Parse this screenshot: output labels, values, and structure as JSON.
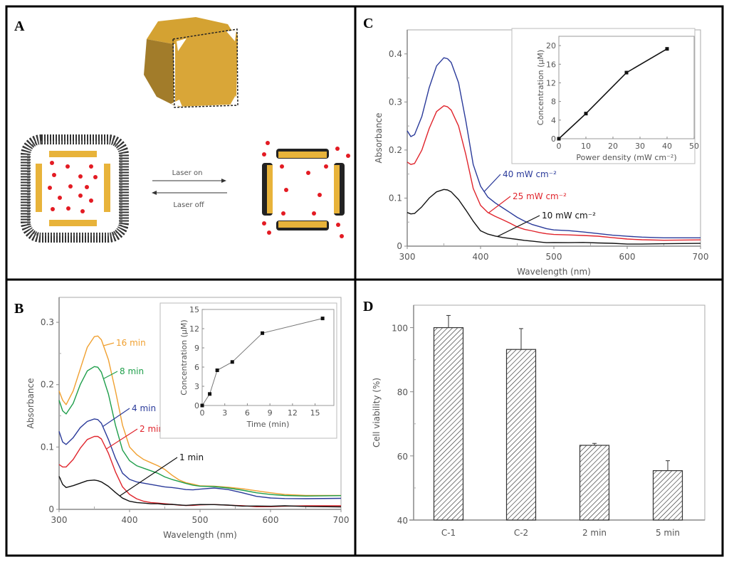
{
  "figure": {
    "panels": [
      "A",
      "B",
      "C",
      "D"
    ]
  },
  "panel_a": {
    "letter": "A",
    "arrow_forward_label": "Laser on",
    "arrow_back_label": "Laser off",
    "colors": {
      "gold": "#E8B33A",
      "gold_dark": "#A27C2A",
      "gold_mid": "#C9962E",
      "drug": "#E31B23",
      "polymer": "#222222"
    }
  },
  "chart_data": [
    {
      "id": "B",
      "type": "line",
      "title": "",
      "letter": "B",
      "xlabel": "Wavelength (nm)",
      "ylabel": "Absorbance",
      "xlim": [
        300,
        700
      ],
      "ylim": [
        0,
        0.34
      ],
      "xticks": [
        300,
        400,
        500,
        600,
        700
      ],
      "yticks": [
        0,
        0.1,
        0.2,
        0.3
      ],
      "ytick_labels": [
        "0",
        "0.1",
        "0.2",
        "0.3"
      ],
      "x": [
        300,
        305,
        310,
        320,
        330,
        340,
        350,
        355,
        360,
        370,
        380,
        390,
        400,
        410,
        420,
        430,
        440,
        450,
        460,
        470,
        480,
        490,
        500,
        520,
        540,
        560,
        580,
        600,
        620,
        650,
        700
      ],
      "series": [
        {
          "name": "16 min",
          "color": "#F0A030",
          "values": [
            0.19,
            0.175,
            0.168,
            0.19,
            0.225,
            0.26,
            0.277,
            0.278,
            0.272,
            0.24,
            0.19,
            0.135,
            0.1,
            0.088,
            0.08,
            0.075,
            0.07,
            0.064,
            0.055,
            0.047,
            0.042,
            0.04,
            0.038,
            0.038,
            0.036,
            0.033,
            0.029,
            0.026,
            0.024,
            0.023,
            0.023
          ]
        },
        {
          "name": "8 min",
          "color": "#1E9E4A",
          "values": [
            0.175,
            0.158,
            0.153,
            0.17,
            0.2,
            0.222,
            0.229,
            0.228,
            0.22,
            0.185,
            0.135,
            0.095,
            0.078,
            0.07,
            0.066,
            0.062,
            0.058,
            0.052,
            0.048,
            0.044,
            0.041,
            0.039,
            0.038,
            0.037,
            0.034,
            0.03,
            0.026,
            0.024,
            0.023,
            0.022,
            0.022
          ]
        },
        {
          "name": "4 min",
          "color": "#2A3A9A",
          "values": [
            0.125,
            0.108,
            0.104,
            0.115,
            0.131,
            0.141,
            0.145,
            0.144,
            0.138,
            0.112,
            0.082,
            0.058,
            0.048,
            0.044,
            0.042,
            0.04,
            0.038,
            0.036,
            0.035,
            0.033,
            0.032,
            0.032,
            0.033,
            0.034,
            0.031,
            0.026,
            0.021,
            0.019,
            0.018,
            0.017,
            0.017
          ]
        },
        {
          "name": "2 min",
          "color": "#E0242C",
          "values": [
            0.072,
            0.068,
            0.068,
            0.08,
            0.098,
            0.112,
            0.117,
            0.117,
            0.113,
            0.09,
            0.06,
            0.036,
            0.024,
            0.017,
            0.013,
            0.011,
            0.01,
            0.009,
            0.008,
            0.007,
            0.007,
            0.007,
            0.007,
            0.007,
            0.006,
            0.006,
            0.005,
            0.005,
            0.005,
            0.005,
            0.005
          ]
        },
        {
          "name": "1 min",
          "color": "#111111",
          "values": [
            0.053,
            0.04,
            0.035,
            0.038,
            0.042,
            0.046,
            0.047,
            0.046,
            0.044,
            0.037,
            0.027,
            0.018,
            0.013,
            0.011,
            0.01,
            0.009,
            0.009,
            0.008,
            0.008,
            0.008,
            0.007,
            0.007,
            0.007,
            0.007,
            0.007,
            0.006,
            0.006,
            0.005,
            0.005,
            0.004,
            0.004
          ]
        }
      ],
      "annotations": [
        {
          "text": "16 min",
          "series": "16 min",
          "from_x": 363,
          "to_label": true
        },
        {
          "text": "8 min",
          "series": "8 min",
          "from_x": 363
        },
        {
          "text": "4 min",
          "series": "4 min",
          "from_x": 362
        },
        {
          "text": "2 min",
          "series": "2 min",
          "from_x": 367
        },
        {
          "text": "1 min",
          "series": "1 min",
          "from_x": 386
        }
      ],
      "inset": {
        "type": "line",
        "xlabel": "Time (min)",
        "ylabel": "Concentration (μM)",
        "xlim": [
          0,
          17.5
        ],
        "ylim": [
          0,
          15
        ],
        "xticks": [
          0,
          3,
          6,
          9,
          12,
          15
        ],
        "yticks": [
          0,
          3,
          6,
          9,
          12,
          15
        ],
        "x": [
          0,
          1,
          2,
          4,
          8,
          16
        ],
        "y": [
          0,
          1.8,
          5.5,
          6.8,
          11.3,
          13.6
        ],
        "color": "#777777"
      }
    },
    {
      "id": "C",
      "type": "line",
      "title": "",
      "letter": "C",
      "xlabel": "Wavelength (nm)",
      "ylabel": "Absorbance",
      "xlim": [
        300,
        700
      ],
      "ylim": [
        0,
        0.45
      ],
      "xticks": [
        300,
        400,
        500,
        600,
        700
      ],
      "yticks": [
        0,
        0.1,
        0.2,
        0.3,
        0.4
      ],
      "ytick_labels": [
        "0",
        "0.1",
        "0.2",
        "0.3",
        "0.4"
      ],
      "x": [
        300,
        305,
        310,
        320,
        330,
        340,
        350,
        355,
        360,
        370,
        380,
        390,
        400,
        410,
        420,
        430,
        440,
        450,
        460,
        470,
        480,
        490,
        500,
        520,
        540,
        560,
        580,
        600,
        620,
        650,
        700
      ],
      "series": [
        {
          "name": "40 mW cm⁻²",
          "color": "#2A3A9A",
          "values": [
            0.24,
            0.228,
            0.232,
            0.27,
            0.33,
            0.375,
            0.392,
            0.39,
            0.382,
            0.34,
            0.26,
            0.17,
            0.125,
            0.102,
            0.09,
            0.08,
            0.07,
            0.06,
            0.052,
            0.045,
            0.04,
            0.036,
            0.034,
            0.033,
            0.03,
            0.026,
            0.022,
            0.02,
            0.019,
            0.018,
            0.018
          ]
        },
        {
          "name": "25 mW cm⁻²",
          "color": "#E0242C",
          "values": [
            0.175,
            0.17,
            0.172,
            0.2,
            0.245,
            0.28,
            0.292,
            0.29,
            0.283,
            0.25,
            0.19,
            0.12,
            0.085,
            0.07,
            0.062,
            0.055,
            0.048,
            0.04,
            0.035,
            0.031,
            0.028,
            0.026,
            0.025,
            0.024,
            0.022,
            0.02,
            0.017,
            0.015,
            0.014,
            0.013,
            0.013
          ]
        },
        {
          "name": "10 mW cm⁻²",
          "color": "#111111",
          "values": [
            0.07,
            0.067,
            0.068,
            0.082,
            0.1,
            0.113,
            0.118,
            0.117,
            0.113,
            0.097,
            0.075,
            0.052,
            0.032,
            0.025,
            0.021,
            0.018,
            0.016,
            0.014,
            0.012,
            0.01,
            0.009,
            0.008,
            0.008,
            0.007,
            0.007,
            0.006,
            0.006,
            0.005,
            0.005,
            0.005,
            0.005
          ]
        }
      ],
      "annotations": [
        {
          "text": "40 mW cm⁻²",
          "series": "40 mW cm⁻²",
          "from_x": 405
        },
        {
          "text": "25 mW cm⁻²",
          "series": "25 mW cm⁻²",
          "from_x": 411
        },
        {
          "text": "10 mW cm⁻²",
          "series": "10 mW cm⁻²",
          "from_x": 423
        }
      ],
      "inset": {
        "type": "line",
        "xlabel": "Power density (mW cm⁻²)",
        "ylabel": "Concentration (μM)",
        "xlim": [
          0,
          50
        ],
        "ylim": [
          0,
          22
        ],
        "xticks": [
          0,
          10,
          20,
          30,
          40,
          50
        ],
        "yticks": [
          0,
          4,
          8,
          12,
          16,
          20
        ],
        "x": [
          0,
          10,
          25,
          40
        ],
        "y": [
          0,
          5.4,
          14.2,
          19.3
        ],
        "color": "#111111"
      }
    },
    {
      "id": "D",
      "type": "bar",
      "title": "",
      "letter": "D",
      "xlabel": "",
      "ylabel": "Cell viability (%)",
      "ylim": [
        40,
        107
      ],
      "yticks": [
        40,
        60,
        80,
        100
      ],
      "minor_yticks": [
        50,
        70,
        90
      ],
      "categories": [
        "C-1",
        "C-2",
        "2 min",
        "5 min"
      ],
      "values": [
        100,
        93.2,
        63.3,
        55.4
      ],
      "errors": [
        3.8,
        6.5,
        0.6,
        3.1
      ],
      "bar_fill": "hatched"
    }
  ]
}
